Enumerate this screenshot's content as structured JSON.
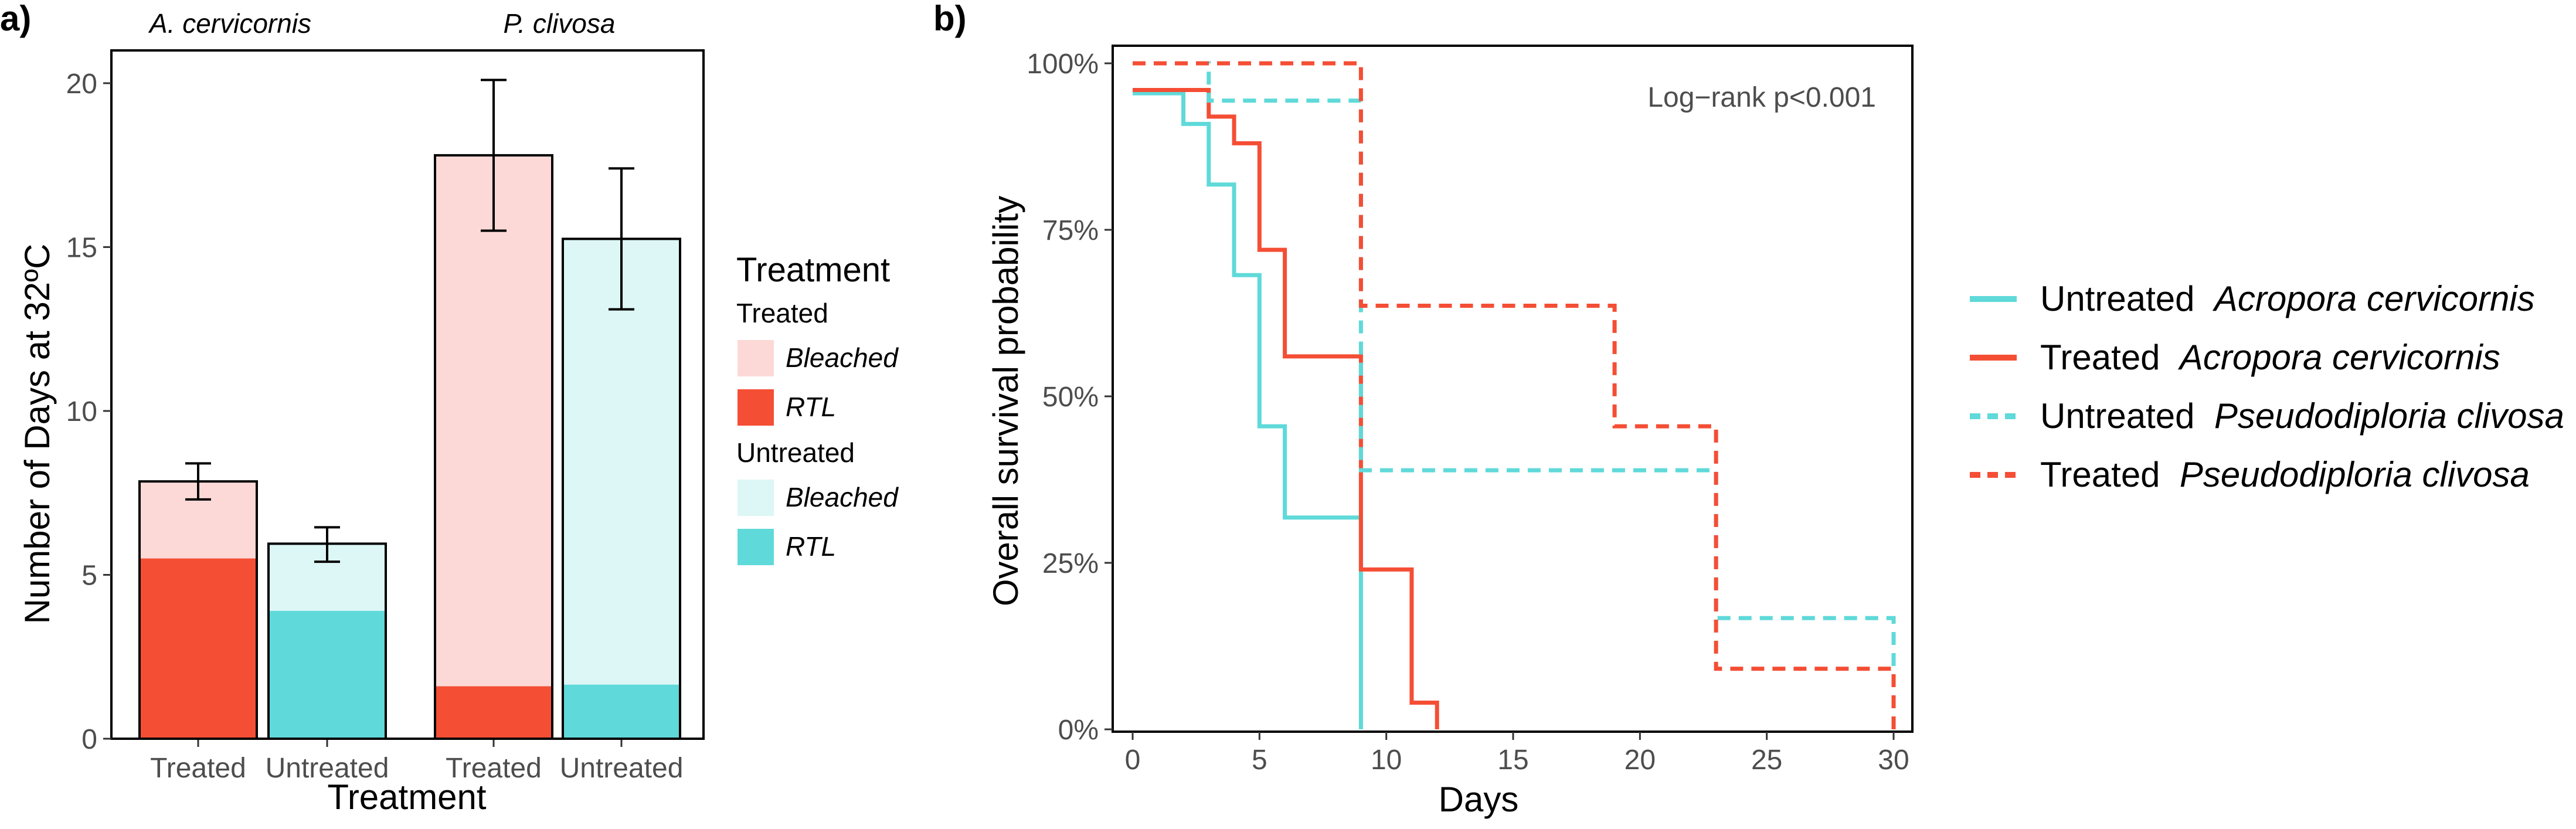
{
  "chart_data": [
    {
      "panel": "a)",
      "type": "bar",
      "stacked": true,
      "xlabel": "Treatment",
      "ylabel": "Number of Days at 32ºC",
      "ylim": [
        0,
        21
      ],
      "yticks": [
        "0",
        "5",
        "10",
        "15",
        "20"
      ],
      "grid": false,
      "facets": [
        "A. cervicornis",
        "P. clivosa"
      ],
      "bars": [
        {
          "facet": "A. cervicornis",
          "category": "Treated",
          "rtl": 5.5,
          "total": 7.85,
          "err_low": 7.3,
          "err_high": 8.4,
          "rtl_color": "#F44E35",
          "bleached_color": "#FCD9D6"
        },
        {
          "facet": "A. cervicornis",
          "category": "Untreated",
          "rtl": 3.9,
          "total": 5.95,
          "err_low": 5.4,
          "err_high": 6.45,
          "rtl_color": "#5FD9D9",
          "bleached_color": "#DDF6F6"
        },
        {
          "facet": "P. clivosa",
          "category": "Treated",
          "rtl": 1.6,
          "total": 17.8,
          "err_low": 15.5,
          "err_high": 20.1,
          "rtl_color": "#F44E35",
          "bleached_color": "#FCD9D6"
        },
        {
          "facet": "P. clivosa",
          "category": "Untreated",
          "rtl": 1.65,
          "total": 15.25,
          "err_low": 13.1,
          "err_high": 17.4,
          "rtl_color": "#5FD9D9",
          "bleached_color": "#DDF6F6"
        }
      ],
      "legend": {
        "title": "Treatment",
        "position": "right",
        "groups": [
          {
            "name": "Treated",
            "items": [
              {
                "label": "Bleached",
                "color": "#FCD9D6"
              },
              {
                "label": "RTL",
                "color": "#F44E35"
              }
            ]
          },
          {
            "name": "Untreated",
            "items": [
              {
                "label": "Bleached",
                "color": "#DDF6F6"
              },
              {
                "label": "RTL",
                "color": "#5FD9D9"
              }
            ]
          }
        ]
      }
    },
    {
      "panel": "b)",
      "type": "line",
      "step": true,
      "xlabel": "Days",
      "ylabel": "Overall survival probability",
      "xlim": [
        0,
        30
      ],
      "ylim": [
        0,
        1
      ],
      "xticks": [
        "0",
        "5",
        "10",
        "15",
        "20",
        "25",
        "30"
      ],
      "yticks": [
        "0%",
        "25%",
        "50%",
        "75%",
        "100%"
      ],
      "annotation": "Log−rank p<0.001",
      "grid": false,
      "series": [
        {
          "prefix": "Untreated ",
          "species": "Acropora cervicornis",
          "color": "#5FD9D9",
          "dash": "solid",
          "x": [
            0,
            2,
            3,
            4,
            5,
            6,
            9,
            9
          ],
          "y": [
            0.955,
            0.909,
            0.818,
            0.682,
            0.455,
            0.318,
            0.318,
            0.0
          ]
        },
        {
          "prefix": "Treated ",
          "species": "Acropora cervicornis",
          "color": "#F44E35",
          "dash": "solid",
          "x": [
            0,
            3,
            4,
            5,
            6,
            9,
            11,
            12
          ],
          "y": [
            0.96,
            0.92,
            0.88,
            0.72,
            0.56,
            0.24,
            0.04,
            0.0
          ]
        },
        {
          "prefix": "Untreated ",
          "species": "Pseudodiploria clivosa",
          "color": "#5FD9D9",
          "dash": "dashed",
          "x": [
            0,
            3,
            9,
            23,
            30
          ],
          "y": [
            1.0,
            0.944,
            0.389,
            0.167,
            0.0
          ]
        },
        {
          "prefix": "Treated ",
          "species": "Pseudodiploria clivosa",
          "color": "#F44E35",
          "dash": "dashed",
          "x": [
            0,
            9,
            19,
            23,
            30
          ],
          "y": [
            1.0,
            0.636,
            0.455,
            0.091,
            0.0
          ]
        }
      ],
      "legend_position": "right"
    }
  ]
}
